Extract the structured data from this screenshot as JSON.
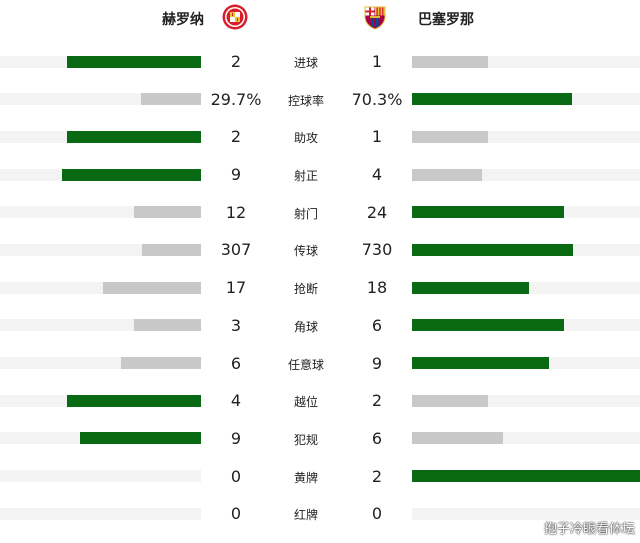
{
  "teams": {
    "home": {
      "name": "赫罗纳",
      "crest_icon": "girona-crest"
    },
    "away": {
      "name": "巴塞罗那",
      "crest_icon": "barcelona-crest"
    }
  },
  "colors": {
    "winner_bar": "#0a6a14",
    "loser_bar": "#c8c8c8",
    "track": "#f3f3f3"
  },
  "chart_data": {
    "type": "bar",
    "orientation": "horizontal-mirrored",
    "categories": [
      "进球",
      "控球率",
      "助攻",
      "射正",
      "射门",
      "传球",
      "抢断",
      "角球",
      "任意球",
      "越位",
      "犯规",
      "黄牌",
      "红牌"
    ],
    "series": [
      {
        "name": "赫罗纳",
        "values": [
          2,
          29.7,
          2,
          9,
          12,
          307,
          17,
          3,
          6,
          4,
          9,
          0,
          0
        ],
        "display": [
          "2",
          "29.7%",
          "2",
          "9",
          "12",
          "307",
          "17",
          "3",
          "6",
          "4",
          "9",
          "0",
          "0"
        ]
      },
      {
        "name": "巴塞罗那",
        "values": [
          1,
          70.3,
          1,
          4,
          24,
          730,
          18,
          6,
          9,
          2,
          6,
          2,
          0
        ],
        "display": [
          "1",
          "70.3%",
          "1",
          "4",
          "24",
          "730",
          "18",
          "6",
          "9",
          "2",
          "6",
          "2",
          "0"
        ]
      }
    ]
  },
  "watermark": "抱子冷眼看体坛"
}
